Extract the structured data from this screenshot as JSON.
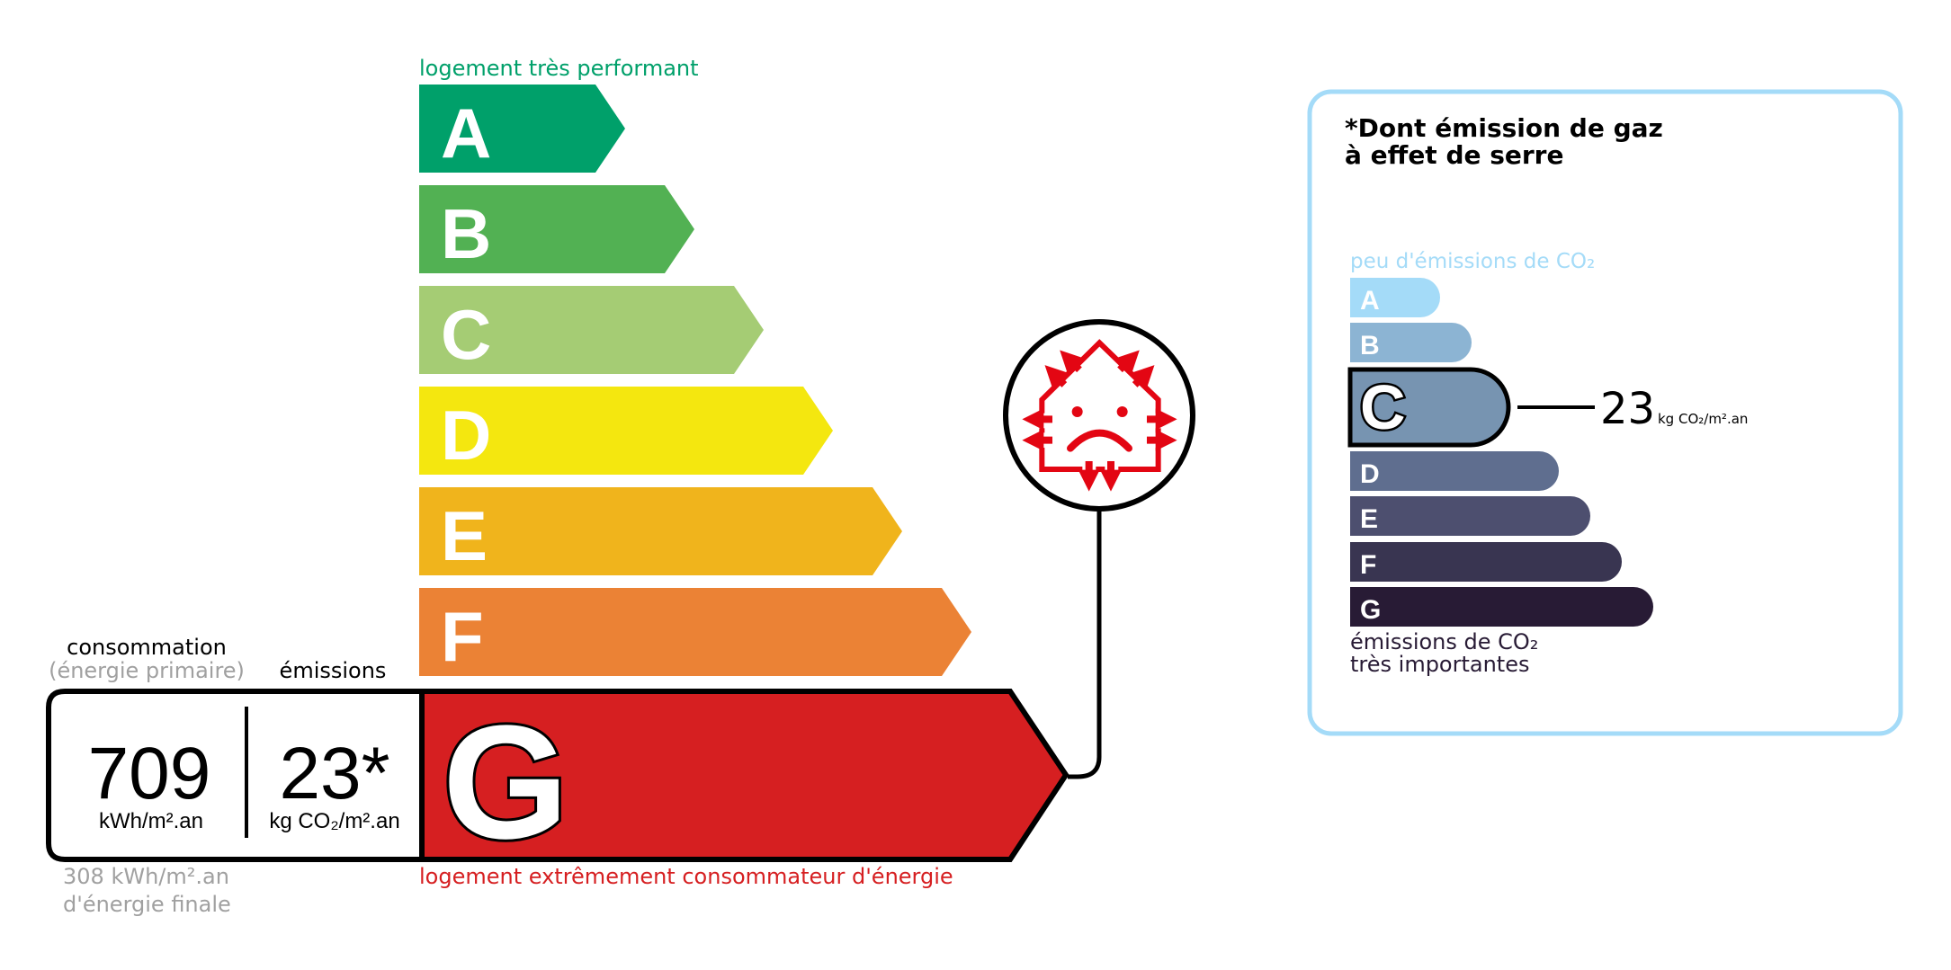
{
  "energy": {
    "top_label": "logement très performant",
    "bottom_label": "logement extrêmement consommateur d'énergie",
    "classes": [
      {
        "letter": "A",
        "color": "#00a06a"
      },
      {
        "letter": "B",
        "color": "#52b153"
      },
      {
        "letter": "C",
        "color": "#a5cc74"
      },
      {
        "letter": "D",
        "color": "#f4e70f"
      },
      {
        "letter": "E",
        "color": "#f0b41c"
      },
      {
        "letter": "F",
        "color": "#eb8235"
      },
      {
        "letter": "G",
        "color": "#d61f21"
      }
    ],
    "current_class": "G",
    "consumption_header": "consommation",
    "consumption_subheader": "(énergie primaire)",
    "emissions_header": "émissions",
    "consumption_value": "709",
    "consumption_unit": "kWh/m².an",
    "emissions_value": "23*",
    "emissions_unit": "kg CO₂/m².an",
    "final_energy_line1": "308 kWh/m².an",
    "final_energy_line2": "d'énergie finale",
    "icon": "house-heat-loss-sad-face-icon"
  },
  "ghg": {
    "title_line1": "*Dont émission de gaz",
    "title_line2": "à effet de serre",
    "top_label": "peu d'émissions de CO₂",
    "bottom_label_line1": "émissions de CO₂",
    "bottom_label_line2": "très importantes",
    "classes": [
      {
        "letter": "A",
        "color": "#a4dbf8"
      },
      {
        "letter": "B",
        "color": "#8cb4d3"
      },
      {
        "letter": "C",
        "color": "#7794b1"
      },
      {
        "letter": "D",
        "color": "#5f6e8f"
      },
      {
        "letter": "E",
        "color": "#4d4f6f"
      },
      {
        "letter": "F",
        "color": "#393551"
      },
      {
        "letter": "G",
        "color": "#281b35"
      }
    ],
    "current_class": "C",
    "value": "23",
    "unit": "kg CO₂/m².an",
    "border_color": "#a4dbf8"
  }
}
